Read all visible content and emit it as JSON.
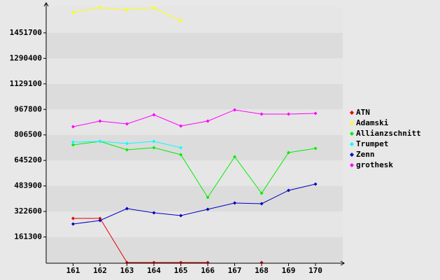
{
  "chart_data": {
    "type": "line",
    "categories": [
      "161",
      "162",
      "163",
      "164",
      "165",
      "166",
      "167",
      "168",
      "169",
      "170"
    ],
    "series": [
      {
        "name": "ATN",
        "color": "#e00000",
        "values": [
          278800,
          278800,
          0,
          0,
          0,
          0,
          null,
          0,
          null,
          null
        ]
      },
      {
        "name": "Adamski",
        "color": "#ffff00",
        "values": [
          1580000,
          1611000,
          1597000,
          1610000,
          1527000,
          null,
          null,
          null,
          null,
          null
        ]
      },
      {
        "name": "Allianzschnitt",
        "color": "#00ee00",
        "values": [
          743400,
          765600,
          712500,
          725800,
          681500,
          411500,
          668200,
          438100,
          694700,
          721300
        ]
      },
      {
        "name": "Trumpet",
        "color": "#00ffff",
        "values": [
          761200,
          765600,
          752300,
          765600,
          725800,
          null,
          null,
          null,
          null,
          null
        ]
      },
      {
        "name": "Zenn",
        "color": "#0000c0",
        "values": [
          243400,
          265500,
          340700,
          314200,
          296500,
          336300,
          376100,
          371700,
          455800,
          495600
        ]
      },
      {
        "name": "grothesk",
        "color": "#ff00ff",
        "values": [
          858500,
          893900,
          876200,
          933700,
          862900,
          893900,
          964700,
          938200,
          938200,
          942600
        ]
      }
    ],
    "ylim": [
      0,
      1615000
    ],
    "yticks": [
      161300,
      322600,
      483900,
      645200,
      806500,
      967800,
      1129100,
      1290400,
      1451700
    ],
    "grid": true
  }
}
